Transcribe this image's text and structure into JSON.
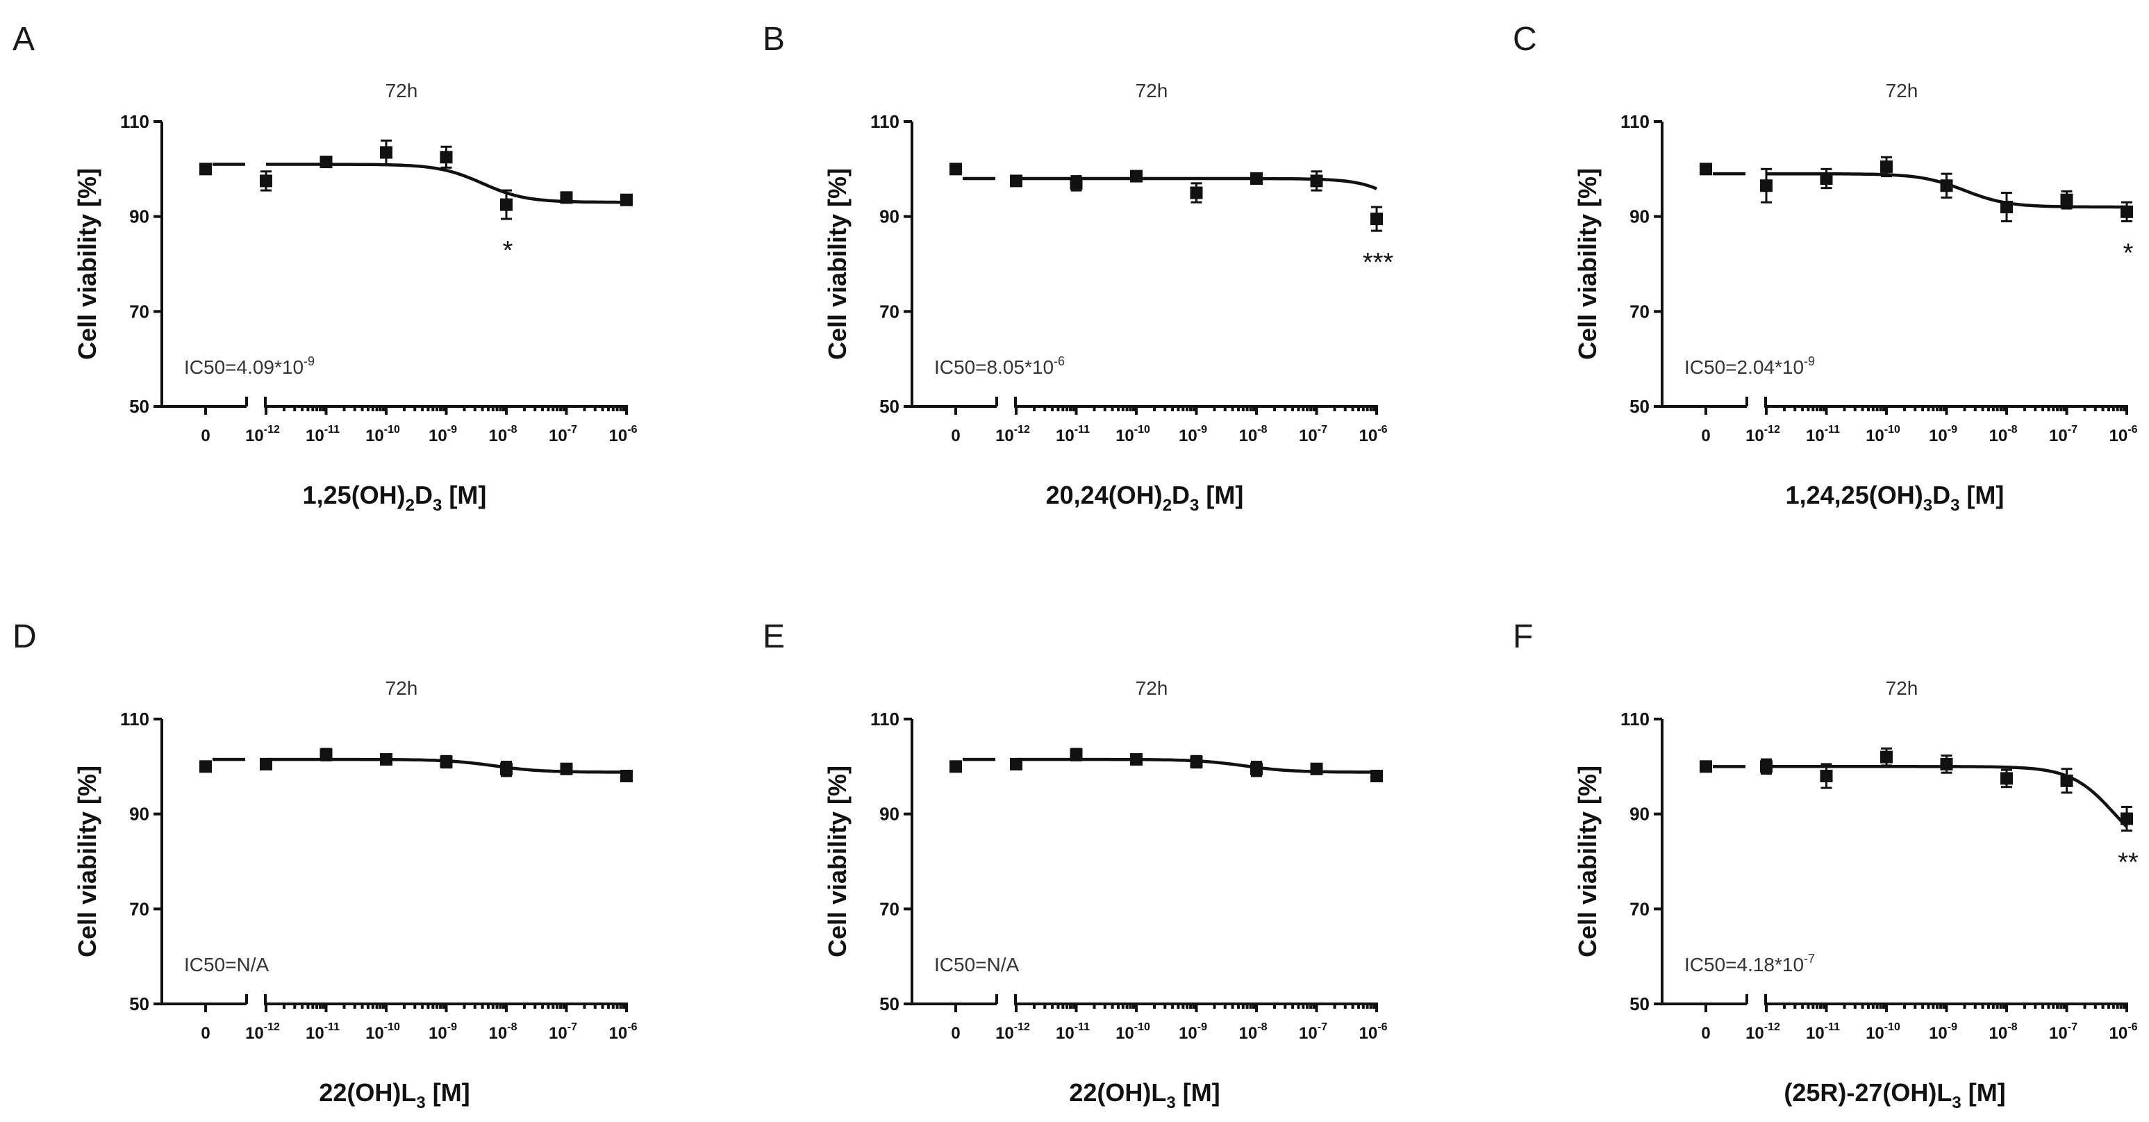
{
  "chart_data": [
    {
      "panel": "A",
      "title": "72h",
      "type": "scatter",
      "ylabel": "Cell viability [%]",
      "ylim": [
        50,
        110
      ],
      "yticks": [
        50,
        70,
        90,
        110
      ],
      "xlabel": {
        "parts": [
          "1,25(OH)",
          "2",
          "D",
          "3",
          "  [M]"
        ]
      },
      "x_categories": [
        "0",
        "10^-12",
        "10^-11",
        "10^-10",
        "10^-9",
        "10^-8",
        "10^-7",
        "10^-6"
      ],
      "x_exponents": [
        null,
        "-12",
        "-11",
        "-10",
        "-9",
        "-8",
        "-7",
        "-6"
      ],
      "values": [
        100.0,
        97.5,
        101.5,
        103.5,
        102.5,
        92.5,
        94.0,
        93.5
      ],
      "errors": [
        0.6,
        2.0,
        0.8,
        2.5,
        2.2,
        3.0,
        0.8,
        0.8
      ],
      "control_fit": 101.0,
      "fit": {
        "top": 101.0,
        "bottom": 93.0,
        "log_ic50": -8.4,
        "hill": 1.2
      },
      "ic50": {
        "base": "IC50=4.09*10",
        "exp": "-9"
      },
      "significance": [
        {
          "category": "10^-8",
          "label": "*"
        }
      ]
    },
    {
      "panel": "B",
      "title": "72h",
      "type": "scatter",
      "ylabel": "Cell viability [%]",
      "ylim": [
        50,
        110
      ],
      "yticks": [
        50,
        70,
        90,
        110
      ],
      "xlabel": {
        "parts": [
          "20,24(OH)",
          "2",
          "D",
          "3",
          "  [M]"
        ]
      },
      "x_categories": [
        "0",
        "10^-12",
        "10^-11",
        "10^-10",
        "10^-9",
        "10^-8",
        "10^-7",
        "10^-6"
      ],
      "x_exponents": [
        null,
        "-12",
        "-11",
        "-10",
        "-9",
        "-8",
        "-7",
        "-6"
      ],
      "values": [
        100.0,
        97.5,
        97.0,
        98.5,
        95.0,
        98.0,
        97.5,
        89.5
      ],
      "errors": [
        0.6,
        0.8,
        1.5,
        0.8,
        2.0,
        0.8,
        2.0,
        2.5
      ],
      "control_fit": 98.0,
      "fit": {
        "top": 98.0,
        "bottom": 70.0,
        "log_ic50": -5.1,
        "hill": 1.2
      },
      "ic50": {
        "base": "IC50=8.05*10",
        "exp": "-6"
      },
      "significance": [
        {
          "category": "10^-6",
          "label": "***"
        }
      ]
    },
    {
      "panel": "C",
      "title": "72h",
      "type": "scatter",
      "ylabel": "Cell viability [%]",
      "ylim": [
        50,
        110
      ],
      "yticks": [
        50,
        70,
        90,
        110
      ],
      "xlabel": {
        "parts": [
          "1,24,25(OH)",
          "3",
          "D",
          "3",
          "  [M]"
        ]
      },
      "x_categories": [
        "0",
        "10^-12",
        "10^-11",
        "10^-10",
        "10^-9",
        "10^-8",
        "10^-7",
        "10^-6"
      ],
      "x_exponents": [
        null,
        "-12",
        "-11",
        "-10",
        "-9",
        "-8",
        "-7",
        "-6"
      ],
      "values": [
        100.0,
        96.5,
        98.0,
        100.5,
        96.5,
        92.0,
        93.5,
        91.0
      ],
      "errors": [
        0.6,
        3.5,
        2.0,
        2.0,
        2.5,
        3.0,
        1.8,
        2.0
      ],
      "control_fit": 99.0,
      "fit": {
        "top": 99.0,
        "bottom": 92.0,
        "log_ic50": -8.7,
        "hill": 1.2
      },
      "ic50": {
        "base": "IC50=2.04*10",
        "exp": "-9"
      },
      "significance": [
        {
          "category": "10^-6",
          "label": "*"
        }
      ]
    },
    {
      "panel": "D",
      "title": "72h",
      "type": "scatter",
      "ylabel": "Cell viability [%]",
      "ylim": [
        50,
        110
      ],
      "yticks": [
        50,
        70,
        90,
        110
      ],
      "xlabel": {
        "parts": [
          "22(OH)L",
          "3",
          "",
          "",
          "  [M]"
        ]
      },
      "x_categories": [
        "0",
        "10^-12",
        "10^-11",
        "10^-10",
        "10^-9",
        "10^-8",
        "10^-7",
        "10^-6"
      ],
      "x_exponents": [
        null,
        "-12",
        "-11",
        "-10",
        "-9",
        "-8",
        "-7",
        "-6"
      ],
      "values": [
        100.0,
        100.5,
        102.5,
        101.5,
        101.0,
        99.5,
        99.5,
        98.0
      ],
      "errors": [
        0.6,
        0.8,
        1.2,
        0.8,
        1.2,
        1.5,
        0.8,
        0.6
      ],
      "control_fit": 101.5,
      "fit": {
        "top": 101.5,
        "bottom": 98.8,
        "log_ic50": -8.2,
        "hill": 1.1
      },
      "ic50": {
        "base": "IC50=N/A",
        "exp": ""
      },
      "significance": []
    },
    {
      "panel": "E",
      "title": "72h",
      "type": "scatter",
      "ylabel": "Cell viability [%]",
      "ylim": [
        50,
        110
      ],
      "yticks": [
        50,
        70,
        90,
        110
      ],
      "xlabel": {
        "parts": [
          "22(OH)L",
          "3",
          "",
          "",
          "  [M]"
        ]
      },
      "x_categories": [
        "0",
        "10^-12",
        "10^-11",
        "10^-10",
        "10^-9",
        "10^-8",
        "10^-7",
        "10^-6"
      ],
      "x_exponents": [
        null,
        "-12",
        "-11",
        "-10",
        "-9",
        "-8",
        "-7",
        "-6"
      ],
      "values": [
        100.0,
        100.5,
        102.5,
        101.5,
        101.0,
        99.5,
        99.5,
        98.0
      ],
      "errors": [
        0.6,
        0.8,
        1.2,
        0.8,
        1.2,
        1.5,
        0.8,
        0.6
      ],
      "control_fit": 101.5,
      "fit": {
        "top": 101.5,
        "bottom": 98.8,
        "log_ic50": -8.2,
        "hill": 1.1
      },
      "ic50": {
        "base": "IC50=N/A",
        "exp": ""
      },
      "significance": []
    },
    {
      "panel": "F",
      "title": "72h",
      "type": "scatter",
      "ylabel": "Cell viability [%]",
      "ylim": [
        50,
        110
      ],
      "yticks": [
        50,
        70,
        90,
        110
      ],
      "xlabel": {
        "parts": [
          "(25R)-27(OH)L",
          "3",
          "",
          "",
          "  [M]"
        ]
      },
      "x_categories": [
        "0",
        "10^-12",
        "10^-11",
        "10^-10",
        "10^-9",
        "10^-8",
        "10^-7",
        "10^-6"
      ],
      "x_exponents": [
        null,
        "-12",
        "-11",
        "-10",
        "-9",
        "-8",
        "-7",
        "-6"
      ],
      "values": [
        100.0,
        100.0,
        98.0,
        102.0,
        100.5,
        97.5,
        97.0,
        89.0
      ],
      "errors": [
        0.6,
        1.5,
        2.5,
        1.8,
        1.8,
        1.8,
        2.5,
        2.5
      ],
      "control_fit": 100.0,
      "fit": {
        "top": 100.0,
        "bottom": 80.0,
        "log_ic50": -6.2,
        "hill": 1.2
      },
      "ic50": {
        "base": "IC50=4.18*10",
        "exp": "-7"
      },
      "significance": [
        {
          "category": "10^-6",
          "label": "**"
        }
      ]
    }
  ]
}
